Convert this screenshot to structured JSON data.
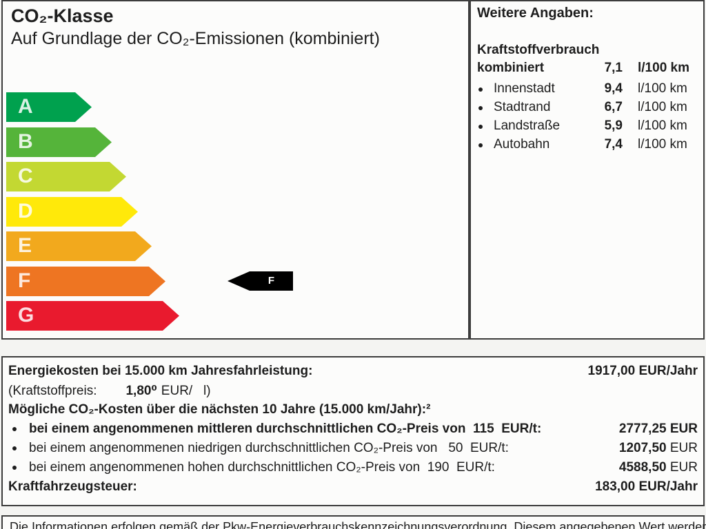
{
  "label": {
    "title": "CO₂-Klasse",
    "subtitle": "Auf Grundlage der CO₂-Emissionen (kombiniert)",
    "classes": [
      {
        "label": "A",
        "color": "#00a14e"
      },
      {
        "label": "B",
        "color": "#55b43a"
      },
      {
        "label": "C",
        "color": "#c3d832"
      },
      {
        "label": "D",
        "color": "#ffe90a"
      },
      {
        "label": "E",
        "color": "#f2a91d"
      },
      {
        "label": "F",
        "color": "#ee7522"
      },
      {
        "label": "G",
        "color": "#e91a2e"
      }
    ],
    "pointer": {
      "label": "F",
      "color": "#000000"
    }
  },
  "details": {
    "heading": "Weitere Angaben:",
    "fuel_heading": "Kraftstoffverbrauch",
    "combined": {
      "label": "kombiniert",
      "value": "7,1",
      "unit": "l/100 km"
    },
    "rows": [
      {
        "label": "Innenstadt",
        "value": "9,4",
        "unit": "l/100 km"
      },
      {
        "label": "Stadtrand",
        "value": "6,7",
        "unit": "l/100 km"
      },
      {
        "label": "Landstraße",
        "value": "5,9",
        "unit": "l/100 km"
      },
      {
        "label": "Autobahn",
        "value": "7,4",
        "unit": "l/100 km"
      }
    ]
  },
  "costs": {
    "energy_label": "Energiekosten bei 15.000 km Jahresfahrleistung:",
    "energy_value": "1917,00 EUR/Jahr",
    "fuel_price_prefix": "(Kraftstoffpreis:",
    "fuel_price_value": "1,80⁰",
    "fuel_price_suffix": "EUR/   l)",
    "co2_heading": "Mögliche CO₂-Kosten über die nächsten 10 Jahre (15.000 km/Jahr):²",
    "co2_rows": [
      {
        "text": "bei einem angenommenen mittleren durchschnittlichen CO₂-Preis von  115  EUR/t:",
        "value": "2777,25",
        "unit": "EUR"
      },
      {
        "text": "bei einem angenommenen niedrigen durchschnittlichen CO₂-Preis von   50  EUR/t:",
        "value": "1207,50",
        "unit": "EUR"
      },
      {
        "text": "bei einem angenommenen hohen durchschnittlichen CO₂-Preis von  190  EUR/t:",
        "value": "4588,50",
        "unit": "EUR"
      }
    ],
    "tax_label": "Kraftfahrzeugsteuer:",
    "tax_value": "183,00 EUR/Jahr"
  },
  "footer": {
    "text": "Die Informationen erfolgen gemäß der Pkw-Energieverbrauchskennzeichnungsverordnung. Diesem angegebenen Wert werden die Werte der"
  }
}
